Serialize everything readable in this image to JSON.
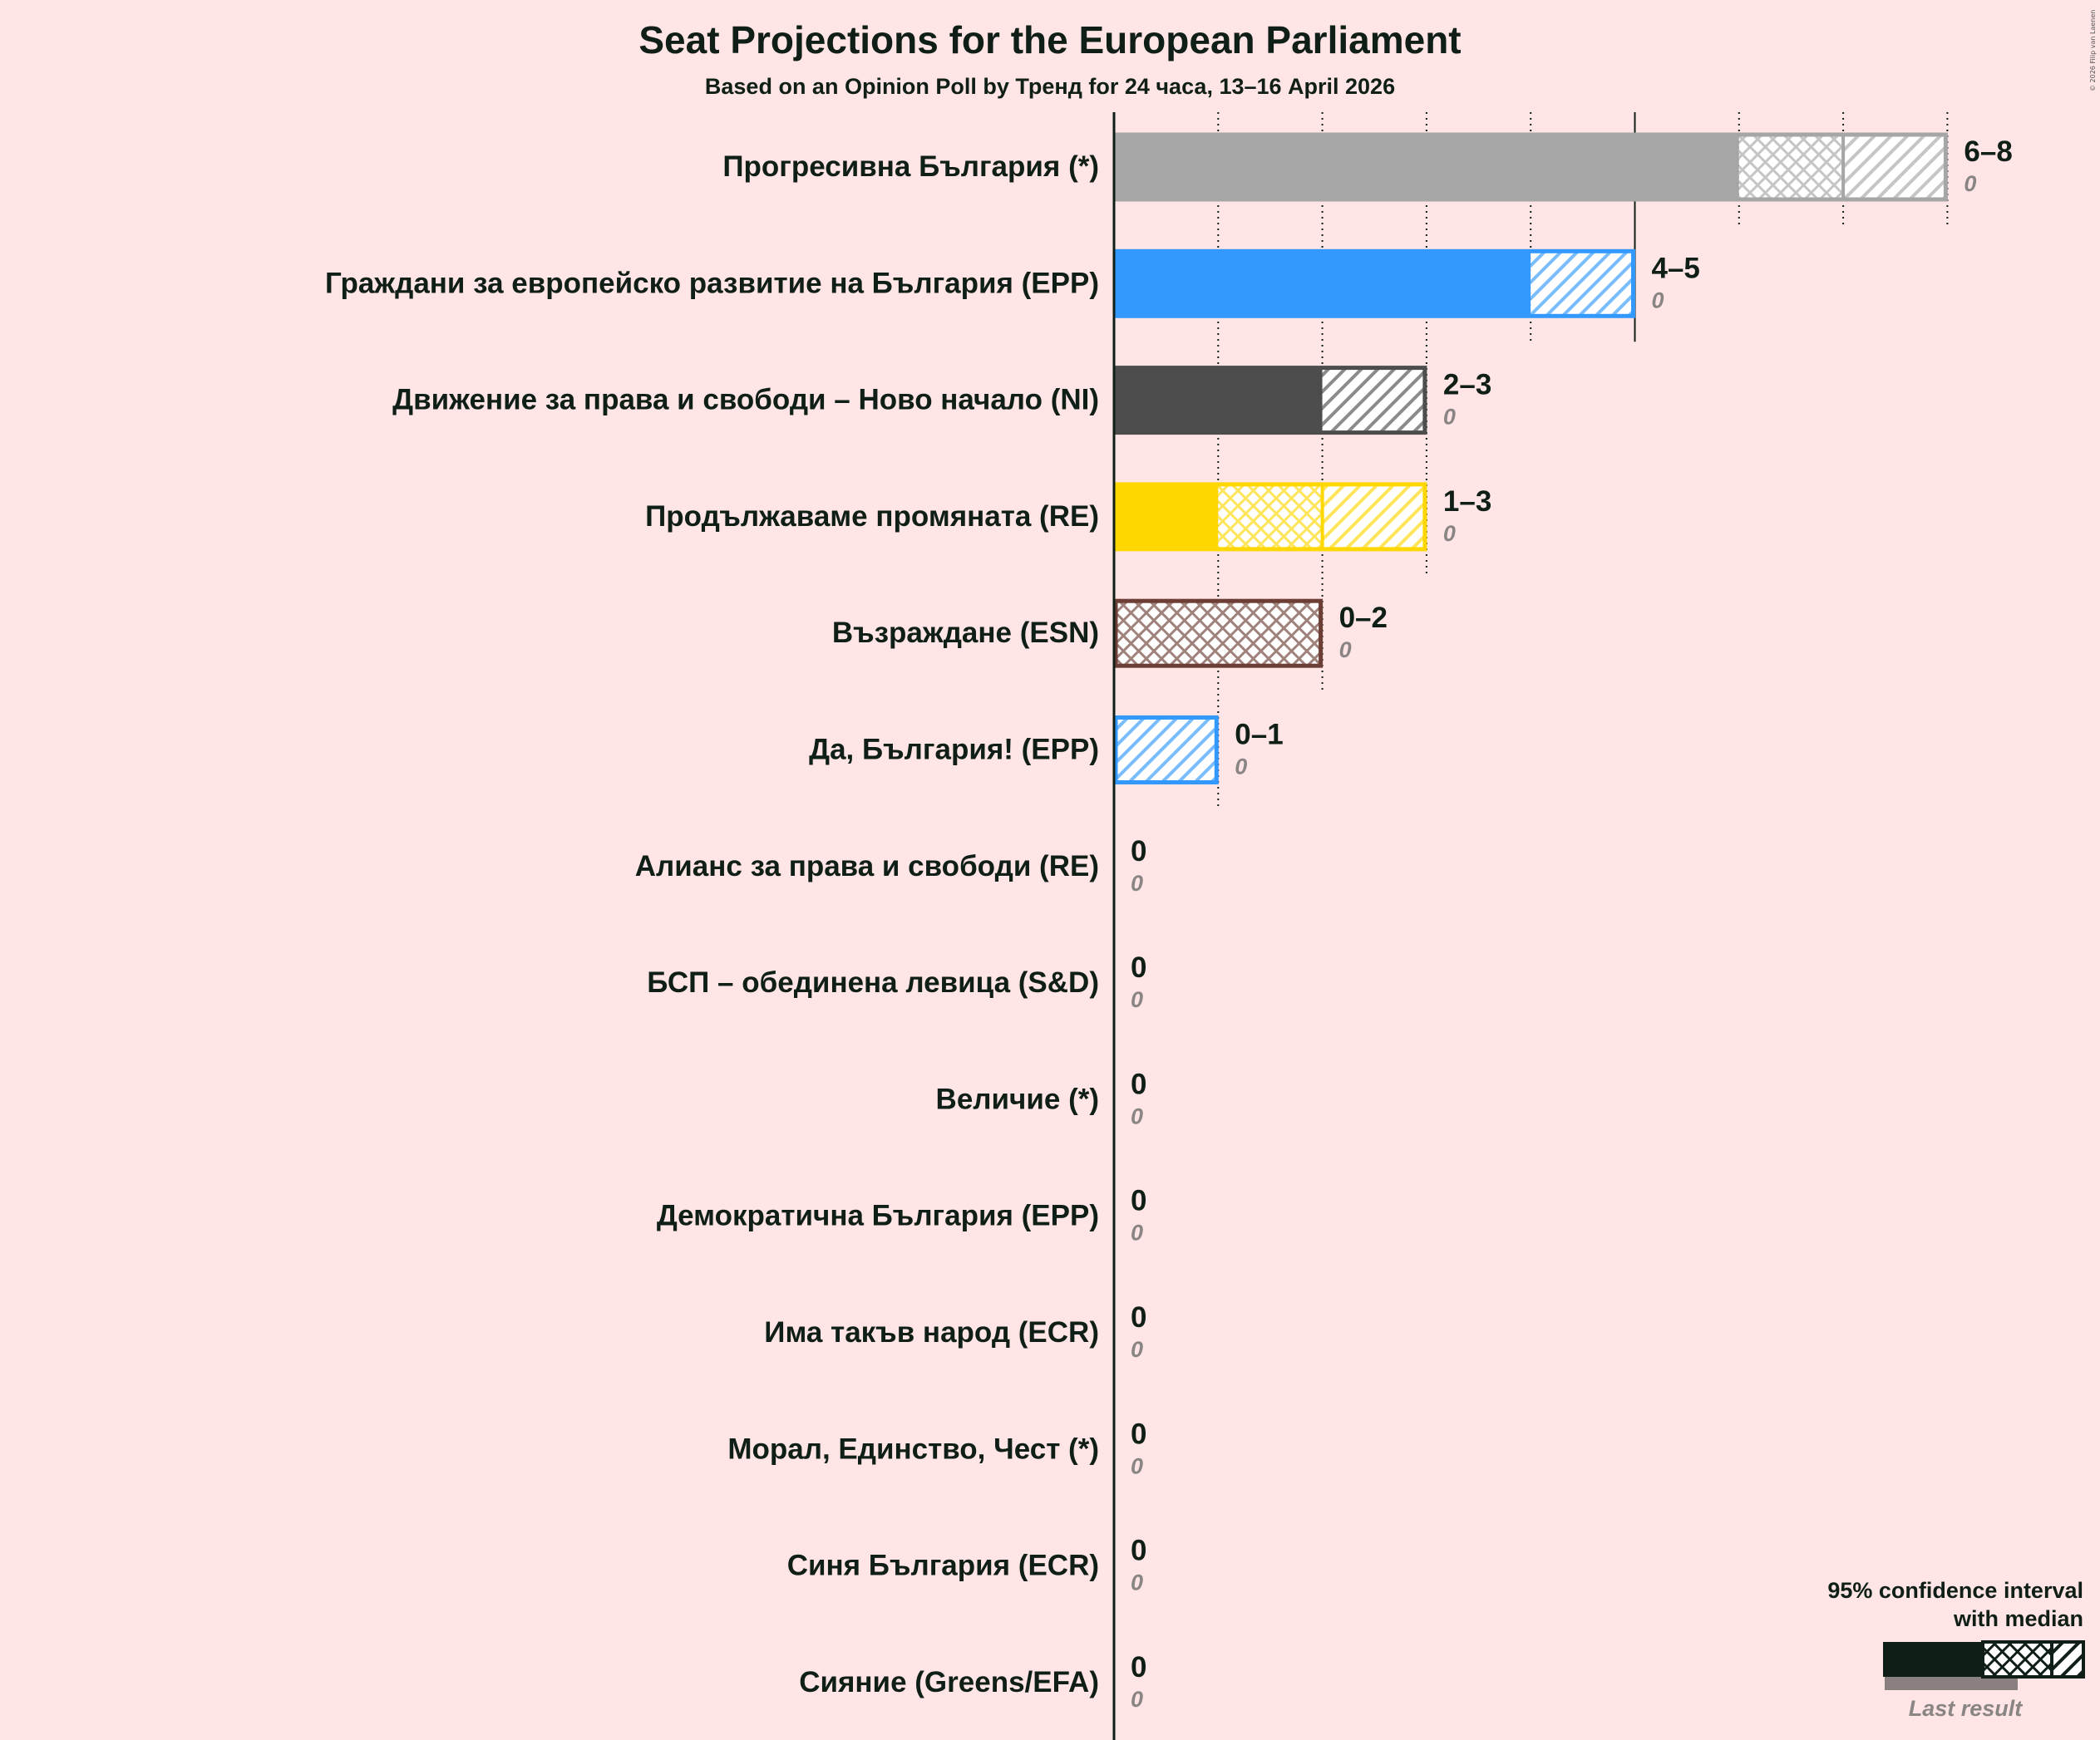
{
  "title": "Seat Projections for the European Parliament",
  "subtitle": "Based on an Opinion Poll by Тренд for 24 часа, 13–16 April 2026",
  "credit": "© 2026 Filip van Laenen",
  "legend": {
    "line1": "95% confidence interval",
    "line2": "with median",
    "last_result": "Last result"
  },
  "chart_data": {
    "type": "bar",
    "orientation": "horizontal",
    "x_unit": "seats",
    "xlim": [
      0,
      8
    ],
    "gridlines": [
      1,
      2,
      3,
      4,
      5,
      6,
      7,
      8
    ],
    "parties": [
      {
        "name": "Прогресивна България (*)",
        "low": 6,
        "median": 7,
        "high": 8,
        "last": 0,
        "range_label": "6–8",
        "last_label": "0",
        "color": "#A6A6A6",
        "border": "#A6A6A6"
      },
      {
        "name": "Граждани за европейско развитие на България (EPP)",
        "low": 4,
        "median": 4,
        "high": 5,
        "last": 0,
        "range_label": "4–5",
        "last_label": "0",
        "color": "#3399FF",
        "border": "#3399FF"
      },
      {
        "name": "Движение за права и свободи – Ново начало (NI)",
        "low": 2,
        "median": 2,
        "high": 3,
        "last": 0,
        "range_label": "2–3",
        "last_label": "0",
        "color": "#4D4D4D",
        "border": "#4D4D4D"
      },
      {
        "name": "Продължаваме промяната (RE)",
        "low": 1,
        "median": 2,
        "high": 3,
        "last": 0,
        "range_label": "1–3",
        "last_label": "0",
        "color": "#FFD700",
        "border": "#FFD700"
      },
      {
        "name": "Възраждане (ESN)",
        "low": 0,
        "median": 2,
        "high": 2,
        "last": 0,
        "range_label": "0–2",
        "last_label": "0",
        "color": "#6D3E36",
        "border": "#6D3E36"
      },
      {
        "name": "Да, България! (EPP)",
        "low": 0,
        "median": 0,
        "high": 1,
        "last": 0,
        "range_label": "0–1",
        "last_label": "0",
        "color": "#3399FF",
        "border": "#3399FF"
      },
      {
        "name": "Алианс за права и свободи (RE)",
        "low": 0,
        "median": 0,
        "high": 0,
        "last": 0,
        "range_label": "0",
        "last_label": "0",
        "color": "#FFD700",
        "border": "#FFD700"
      },
      {
        "name": "БСП – обединена левица (S&D)",
        "low": 0,
        "median": 0,
        "high": 0,
        "last": 0,
        "range_label": "0",
        "last_label": "0",
        "color": "#E4002B",
        "border": "#E4002B"
      },
      {
        "name": "Величие (*)",
        "low": 0,
        "median": 0,
        "high": 0,
        "last": 0,
        "range_label": "0",
        "last_label": "0",
        "color": "#A6A6A6",
        "border": "#A6A6A6"
      },
      {
        "name": "Демократична България (EPP)",
        "low": 0,
        "median": 0,
        "high": 0,
        "last": 0,
        "range_label": "0",
        "last_label": "0",
        "color": "#3399FF",
        "border": "#3399FF"
      },
      {
        "name": "Има такъв народ (ECR)",
        "low": 0,
        "median": 0,
        "high": 0,
        "last": 0,
        "range_label": "0",
        "last_label": "0",
        "color": "#0087DC",
        "border": "#0087DC"
      },
      {
        "name": "Морал, Единство, Чест (*)",
        "low": 0,
        "median": 0,
        "high": 0,
        "last": 0,
        "range_label": "0",
        "last_label": "0",
        "color": "#A6A6A6",
        "border": "#A6A6A6"
      },
      {
        "name": "Синя България (ECR)",
        "low": 0,
        "median": 0,
        "high": 0,
        "last": 0,
        "range_label": "0",
        "last_label": "0",
        "color": "#0087DC",
        "border": "#0087DC"
      },
      {
        "name": "Сияние (Greens/EFA)",
        "low": 0,
        "median": 0,
        "high": 0,
        "last": 0,
        "range_label": "0",
        "last_label": "0",
        "color": "#57B45F",
        "border": "#57B45F"
      }
    ]
  }
}
